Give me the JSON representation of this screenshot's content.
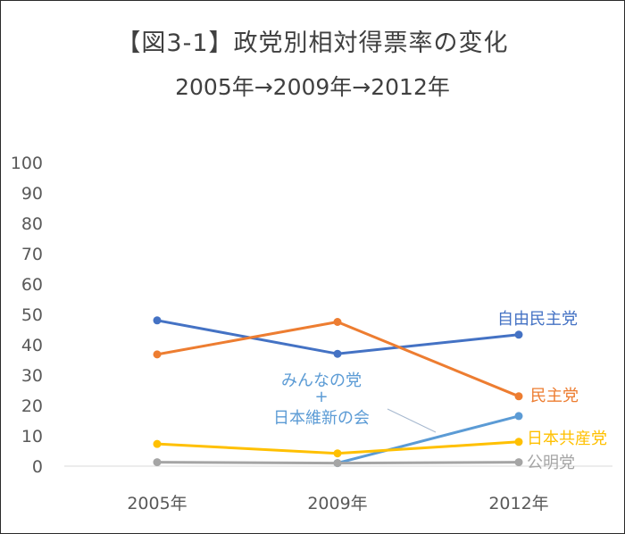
{
  "chart_data": {
    "type": "line",
    "title": "【図3-1】政党別相対得票率の変化",
    "subtitle": "2005年→2009年→2012年",
    "categories": [
      "2005年",
      "2009年",
      "2012年"
    ],
    "ylim": [
      0,
      100
    ],
    "yticks": [
      "0",
      "10",
      "20",
      "30",
      "40",
      "50",
      "60",
      "70",
      "80",
      "90",
      "100"
    ],
    "grid": false,
    "legend": "inline labels at line ends",
    "series": [
      {
        "name": "自由民主党",
        "color": "#4472c4",
        "values": [
          48,
          37,
          43.3
        ]
      },
      {
        "name": "民主党",
        "color": "#ed7d31",
        "values": [
          36.8,
          47.5,
          23
        ]
      },
      {
        "name": "みんなの党",
        "name_line2": "+",
        "name_line3": "日本維新の会",
        "color": "#5b9bd5",
        "values": [
          null,
          1,
          16.5
        ]
      },
      {
        "name": "日本共産党",
        "color": "#ffc000",
        "values": [
          7.3,
          4.2,
          8
        ]
      },
      {
        "name": "公明党",
        "color": "#a5a5a5",
        "values": [
          1.3,
          1,
          1.3
        ]
      }
    ]
  }
}
